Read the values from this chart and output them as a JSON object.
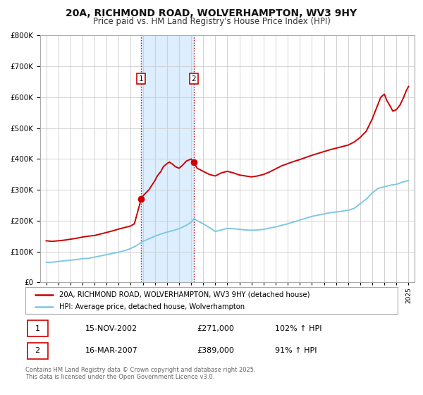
{
  "title": "20A, RICHMOND ROAD, WOLVERHAMPTON, WV3 9HY",
  "subtitle": "Price paid vs. HM Land Registry's House Price Index (HPI)",
  "title_fontsize": 10,
  "subtitle_fontsize": 8.5,
  "hpi_color": "#7ec8e3",
  "price_color": "#cc0000",
  "grid_color": "#cccccc",
  "bg_color": "#ffffff",
  "marker1_date": 2002.87,
  "marker1_price": 271000,
  "marker2_date": 2007.21,
  "marker2_price": 389000,
  "vline1_x": 2002.87,
  "vline2_x": 2007.21,
  "shade_color": "#ddeeff",
  "legend_line1": "20A, RICHMOND ROAD, WOLVERHAMPTON, WV3 9HY (detached house)",
  "legend_line2": "HPI: Average price, detached house, Wolverhampton",
  "table_row1": [
    "1",
    "15-NOV-2002",
    "£271,000",
    "102% ↑ HPI"
  ],
  "table_row2": [
    "2",
    "16-MAR-2007",
    "£389,000",
    "91% ↑ HPI"
  ],
  "footer": "Contains HM Land Registry data © Crown copyright and database right 2025.\nThis data is licensed under the Open Government Licence v3.0.",
  "ylim": [
    0,
    800000
  ],
  "xlim_start": 1994.5,
  "xlim_end": 2025.5,
  "hpi_series": [
    [
      1995,
      65000
    ],
    [
      1995.5,
      65500
    ],
    [
      1996,
      68000
    ],
    [
      1996.5,
      70000
    ],
    [
      1997,
      72000
    ],
    [
      1997.5,
      74000
    ],
    [
      1998,
      77000
    ],
    [
      1998.5,
      78000
    ],
    [
      1999,
      82000
    ],
    [
      1999.5,
      86000
    ],
    [
      2000,
      90000
    ],
    [
      2000.5,
      94000
    ],
    [
      2001,
      98000
    ],
    [
      2001.5,
      103000
    ],
    [
      2002,
      110000
    ],
    [
      2002.5,
      120000
    ],
    [
      2003,
      133000
    ],
    [
      2003.5,
      141000
    ],
    [
      2004,
      150000
    ],
    [
      2004.5,
      157000
    ],
    [
      2005,
      163000
    ],
    [
      2005.5,
      168000
    ],
    [
      2006,
      174000
    ],
    [
      2006.5,
      183000
    ],
    [
      2007,
      195000
    ],
    [
      2007.25,
      207000
    ],
    [
      2007.5,
      200000
    ],
    [
      2008,
      190000
    ],
    [
      2008.5,
      178000
    ],
    [
      2009,
      165000
    ],
    [
      2009.5,
      170000
    ],
    [
      2010,
      175000
    ],
    [
      2010.5,
      174000
    ],
    [
      2011,
      172000
    ],
    [
      2011.5,
      170000
    ],
    [
      2012,
      169000
    ],
    [
      2012.5,
      170000
    ],
    [
      2013,
      172000
    ],
    [
      2013.5,
      176000
    ],
    [
      2014,
      180000
    ],
    [
      2014.5,
      185000
    ],
    [
      2015,
      190000
    ],
    [
      2015.5,
      196000
    ],
    [
      2016,
      202000
    ],
    [
      2016.5,
      208000
    ],
    [
      2017,
      214000
    ],
    [
      2017.5,
      218000
    ],
    [
      2018,
      222000
    ],
    [
      2018.5,
      226000
    ],
    [
      2019,
      228000
    ],
    [
      2019.5,
      231000
    ],
    [
      2020,
      234000
    ],
    [
      2020.5,
      240000
    ],
    [
      2021,
      255000
    ],
    [
      2021.5,
      270000
    ],
    [
      2022,
      290000
    ],
    [
      2022.5,
      305000
    ],
    [
      2023,
      310000
    ],
    [
      2023.5,
      315000
    ],
    [
      2024,
      318000
    ],
    [
      2024.5,
      325000
    ],
    [
      2025,
      330000
    ]
  ],
  "price_series": [
    [
      1995,
      135000
    ],
    [
      1995.5,
      133000
    ],
    [
      1996,
      135000
    ],
    [
      1996.5,
      137000
    ],
    [
      1997,
      140000
    ],
    [
      1997.5,
      143000
    ],
    [
      1998,
      147000
    ],
    [
      1998.5,
      150000
    ],
    [
      1999,
      152000
    ],
    [
      1999.5,
      157000
    ],
    [
      2000,
      162000
    ],
    [
      2000.5,
      167000
    ],
    [
      2001,
      173000
    ],
    [
      2001.5,
      178000
    ],
    [
      2002,
      183000
    ],
    [
      2002.3,
      190000
    ],
    [
      2002.87,
      271000
    ],
    [
      2003,
      280000
    ],
    [
      2003.5,
      300000
    ],
    [
      2004,
      330000
    ],
    [
      2004.2,
      345000
    ],
    [
      2004.5,
      360000
    ],
    [
      2004.7,
      375000
    ],
    [
      2005,
      385000
    ],
    [
      2005.2,
      390000
    ],
    [
      2005.5,
      382000
    ],
    [
      2005.7,
      375000
    ],
    [
      2006,
      370000
    ],
    [
      2006.3,
      380000
    ],
    [
      2006.6,
      393000
    ],
    [
      2007,
      400000
    ],
    [
      2007.21,
      389000
    ],
    [
      2007.5,
      370000
    ],
    [
      2008,
      360000
    ],
    [
      2008.5,
      350000
    ],
    [
      2009,
      345000
    ],
    [
      2009.5,
      355000
    ],
    [
      2010,
      360000
    ],
    [
      2010.5,
      355000
    ],
    [
      2011,
      348000
    ],
    [
      2011.5,
      345000
    ],
    [
      2012,
      342000
    ],
    [
      2012.5,
      345000
    ],
    [
      2013,
      350000
    ],
    [
      2013.5,
      358000
    ],
    [
      2014,
      368000
    ],
    [
      2014.5,
      378000
    ],
    [
      2015,
      385000
    ],
    [
      2015.5,
      392000
    ],
    [
      2016,
      398000
    ],
    [
      2016.5,
      405000
    ],
    [
      2017,
      412000
    ],
    [
      2017.5,
      418000
    ],
    [
      2018,
      424000
    ],
    [
      2018.5,
      430000
    ],
    [
      2019,
      435000
    ],
    [
      2019.5,
      440000
    ],
    [
      2020,
      445000
    ],
    [
      2020.5,
      455000
    ],
    [
      2021,
      470000
    ],
    [
      2021.5,
      490000
    ],
    [
      2022,
      530000
    ],
    [
      2022.3,
      560000
    ],
    [
      2022.5,
      580000
    ],
    [
      2022.7,
      600000
    ],
    [
      2023,
      610000
    ],
    [
      2023.2,
      590000
    ],
    [
      2023.5,
      570000
    ],
    [
      2023.7,
      555000
    ],
    [
      2024,
      560000
    ],
    [
      2024.3,
      575000
    ],
    [
      2024.6,
      600000
    ],
    [
      2024.8,
      620000
    ],
    [
      2025,
      635000
    ]
  ]
}
